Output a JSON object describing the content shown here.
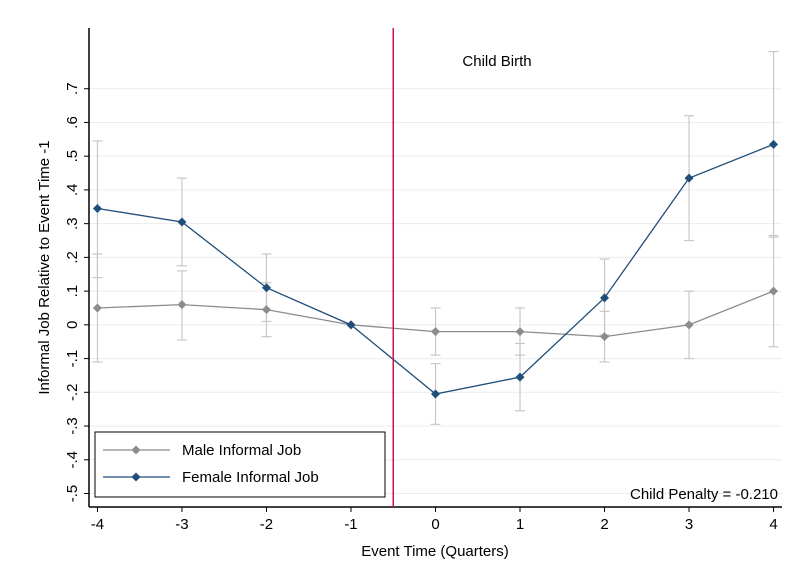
{
  "chart_data": {
    "type": "line",
    "ylabel": "Informal Job Relative to Event Time -1",
    "xlabel": "Event Time (Quarters)",
    "xlim": [
      -4.1,
      4.1
    ],
    "ylim": [
      -0.54,
      0.88
    ],
    "x_ticks": [
      -4,
      -3,
      -2,
      -1,
      0,
      1,
      2,
      3,
      4
    ],
    "y_ticks": [
      -0.5,
      -0.4,
      -0.3,
      -0.2,
      -0.1,
      0,
      0.1,
      0.2,
      0.3,
      0.4,
      0.5,
      0.6,
      0.7
    ],
    "y_tick_labels": [
      "-.5",
      "-.4",
      "-.3",
      "-.2",
      "-.1",
      "0",
      ".1",
      ".2",
      ".3",
      ".4",
      ".5",
      ".6",
      ".7"
    ],
    "x_tick_labels": [
      "-4",
      "-3",
      "-2",
      "-1",
      "0",
      "1",
      "2",
      "3",
      "4"
    ],
    "grid": true,
    "event_line": {
      "x": -0.5,
      "label": "Child Birth",
      "color": "#d0104c"
    },
    "annotation": "Child Penalty = -0.210",
    "legend_position": "bottom-left",
    "series": [
      {
        "name": "Male Informal Job",
        "color": "#8c8c8c",
        "x": [
          -4,
          -3,
          -2,
          -1,
          0,
          1,
          2,
          3,
          4
        ],
        "y": [
          0.05,
          0.06,
          0.045,
          0.0,
          -0.02,
          -0.02,
          -0.035,
          0.0,
          0.1
        ],
        "ci_low": [
          -0.11,
          -0.045,
          -0.035,
          0.0,
          -0.09,
          -0.09,
          -0.11,
          -0.1,
          -0.065
        ],
        "ci_high": [
          0.21,
          0.16,
          0.125,
          0.0,
          0.05,
          0.05,
          0.04,
          0.1,
          0.265
        ]
      },
      {
        "name": "Female Informal Job",
        "color": "#1f4e79",
        "x": [
          -4,
          -3,
          -2,
          -1,
          0,
          1,
          2,
          3,
          4
        ],
        "y": [
          0.345,
          0.305,
          0.11,
          0.0,
          -0.205,
          -0.155,
          0.08,
          0.435,
          0.535
        ],
        "ci_low": [
          0.14,
          0.175,
          0.01,
          0.0,
          -0.295,
          -0.255,
          -0.03,
          0.25,
          0.26
        ],
        "ci_high": [
          0.545,
          0.435,
          0.21,
          0.0,
          -0.115,
          -0.055,
          0.195,
          0.62,
          0.81
        ]
      }
    ]
  }
}
